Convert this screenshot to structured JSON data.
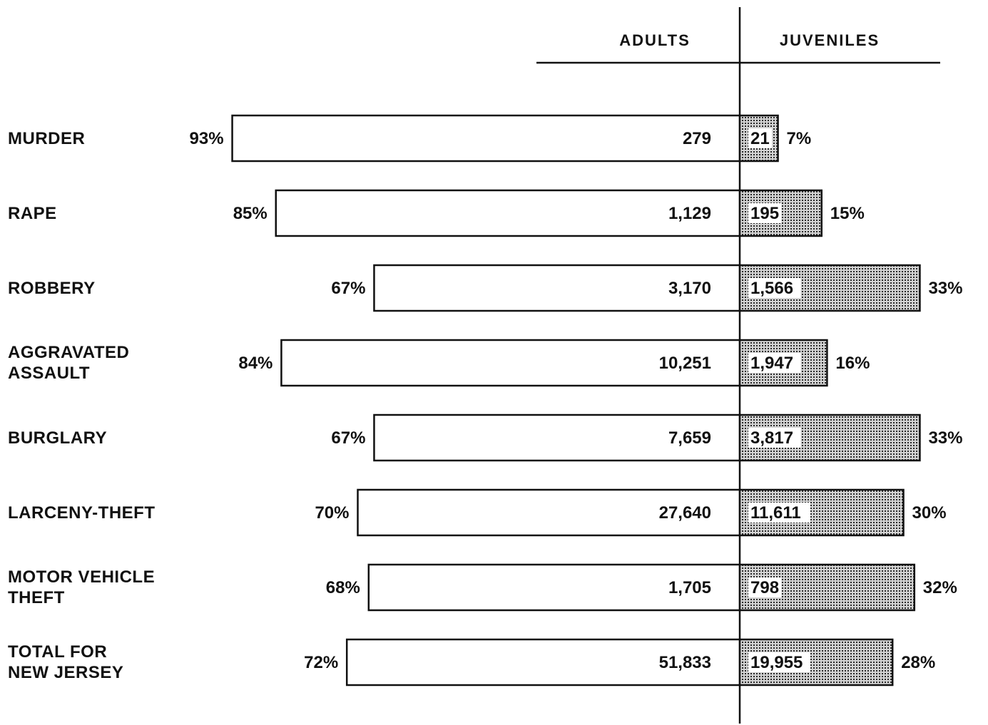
{
  "chart_data": {
    "type": "bar",
    "orientation": "horizontal-diverging",
    "title": "",
    "xlabel": "",
    "ylabel": "",
    "series_headers": [
      "ADULTS",
      "JUVENILES"
    ],
    "categories": [
      [
        "MURDER"
      ],
      [
        "RAPE"
      ],
      [
        "ROBBERY"
      ],
      [
        "AGGRAVATED",
        "ASSAULT"
      ],
      [
        "BURGLARY"
      ],
      [
        "LARCENY-THEFT"
      ],
      [
        "MOTOR VEHICLE",
        "THEFT"
      ],
      [
        "TOTAL FOR",
        "NEW JERSEY"
      ]
    ],
    "adult_percent": [
      93,
      85,
      67,
      84,
      67,
      70,
      68,
      72
    ],
    "juvenile_percent": [
      7,
      15,
      33,
      16,
      33,
      30,
      32,
      28
    ],
    "adult_labels": [
      "279",
      "1,129",
      "3,170",
      "10,251",
      "7,659",
      "27,640",
      "1,705",
      "51,833"
    ],
    "juvenile_labels": [
      "21",
      "195",
      "1,566",
      "1,947",
      "3,817",
      "11,611",
      "798",
      "19,955"
    ],
    "adult_pct_labels": [
      "93%",
      "85%",
      "67%",
      "84%",
      "67%",
      "70%",
      "68%",
      "72%"
    ],
    "juvenile_pct_labels": [
      "7%",
      "15%",
      "33%",
      "16%",
      "33%",
      "30%",
      "32%",
      "28%"
    ],
    "colors": {
      "adults": "#ffffff",
      "juveniles": "stippled-gray",
      "outline": "#111111"
    },
    "grid": false,
    "legend": "top (column headers)"
  }
}
